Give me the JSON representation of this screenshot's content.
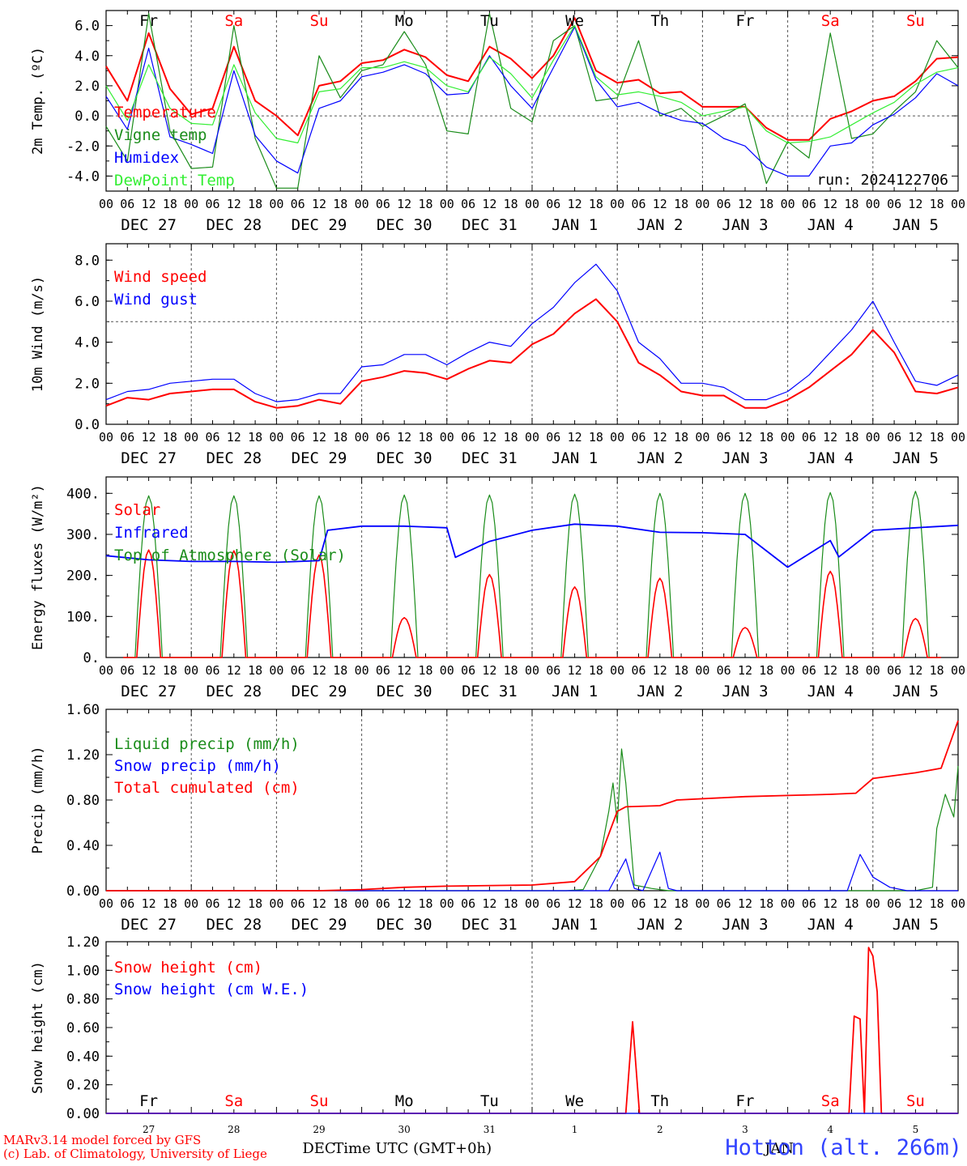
{
  "colors": {
    "red": "#ff0000",
    "green": "#1a8c1a",
    "blue": "#0000ff",
    "lightgreen": "#33ee33",
    "grid": "#555555",
    "axis": "#000000"
  },
  "hour_ticks": [
    "00",
    "06",
    "12",
    "18"
  ],
  "date_labels": [
    "DEC 27",
    "DEC 28",
    "DEC 29",
    "DEC 30",
    "DEC 31",
    "JAN  1",
    "JAN  2",
    "JAN  3",
    "JAN  4",
    "JAN  5"
  ],
  "day_names": [
    {
      "label": "Fr",
      "color": "black"
    },
    {
      "label": "Sa",
      "color": "red"
    },
    {
      "label": "Su",
      "color": "red"
    },
    {
      "label": "Mo",
      "color": "black"
    },
    {
      "label": "Tu",
      "color": "black"
    },
    {
      "label": "We",
      "color": "black"
    },
    {
      "label": "Th",
      "color": "black"
    },
    {
      "label": "Fr",
      "color": "black"
    },
    {
      "label": "Sa",
      "color": "red"
    },
    {
      "label": "Su",
      "color": "red"
    }
  ],
  "bottom_days": [
    "27",
    "28",
    "29",
    "30",
    "31",
    "1",
    "2",
    "3",
    "4",
    "5"
  ],
  "bottom_month_dec": "DEC",
  "bottom_month_jan": "JAN",
  "x_axis_title": "Time UTC (GMT+0h)",
  "credit_line1": "MARv3.14 model forced by GFS",
  "credit_line2": "(c) Lab. of Climatology, University of Liege",
  "station": "Hotton (alt. 266m)",
  "run_label": "run: 2024122706",
  "chart_data": [
    {
      "type": "line",
      "ylabel": "2m Temp. (ºC)",
      "ylim": [
        -5,
        7
      ],
      "yticks": [
        "6.0",
        "4.0",
        "2.0",
        "0.0",
        "-2.0",
        "-4.0"
      ],
      "ytick_values": [
        6,
        4,
        2,
        0,
        -2,
        -4
      ],
      "hline": 0,
      "x_days": [
        0,
        0.25,
        0.5,
        0.75,
        1,
        1.25,
        1.5,
        1.75,
        2,
        2.25,
        2.5,
        2.75,
        3,
        3.25,
        3.5,
        3.75,
        4,
        4.25,
        4.5,
        4.75,
        5,
        5.25,
        5.5,
        5.75,
        6,
        6.25,
        6.5,
        6.75,
        7,
        7.25,
        7.5,
        7.75,
        8,
        8.25,
        8.5,
        8.75,
        9,
        9.25,
        9.5,
        9.75,
        10
      ],
      "series": [
        {
          "name": "Temperature",
          "color": "red",
          "values": [
            3.3,
            1.0,
            5.5,
            1.8,
            0.1,
            0.5,
            4.6,
            1.0,
            0.0,
            -1.3,
            2.0,
            2.3,
            3.5,
            3.7,
            4.4,
            3.9,
            2.7,
            2.3,
            4.6,
            3.8,
            2.5,
            4.0,
            6.5,
            3.0,
            2.2,
            2.4,
            1.5,
            1.6,
            0.6,
            0.6,
            0.6,
            -0.8,
            -1.6,
            -1.6,
            -0.2,
            0.3,
            1.0,
            1.3,
            2.3,
            3.8,
            3.9
          ]
        },
        {
          "name": "Vigne temp",
          "color": "green",
          "values": [
            -0.7,
            -3.0,
            6.8,
            -1.0,
            -3.5,
            -3.4,
            6.0,
            -1.5,
            -4.8,
            -4.8,
            4.0,
            1.2,
            3.0,
            3.4,
            5.6,
            3.4,
            -1.0,
            -1.2,
            6.8,
            0.5,
            -0.4,
            5.0,
            6.0,
            1.0,
            1.2,
            5.0,
            0.0,
            0.5,
            -0.7,
            0.0,
            0.8,
            -4.5,
            -1.7,
            -2.8,
            5.5,
            -1.5,
            -1.2,
            0.3,
            1.6,
            5.0,
            3.2
          ]
        },
        {
          "name": "Humidex",
          "color": "blue",
          "values": [
            1.3,
            -0.9,
            4.5,
            -1.4,
            -1.9,
            -2.5,
            3.0,
            -1.3,
            -3.0,
            -3.8,
            0.5,
            1.0,
            2.6,
            2.9,
            3.4,
            2.8,
            1.4,
            1.5,
            4.0,
            2.0,
            0.5,
            3.2,
            5.9,
            2.4,
            0.6,
            0.9,
            0.2,
            -0.3,
            -0.5,
            -1.5,
            -2.0,
            -3.4,
            -4.0,
            -4.0,
            -2.0,
            -1.8,
            -0.6,
            0.1,
            1.2,
            2.8,
            2.0
          ]
        },
        {
          "name": "DewPoint Temp",
          "color": "lightgreen",
          "values": [
            2.0,
            -0.3,
            3.4,
            0.5,
            -0.5,
            -0.6,
            3.4,
            0.2,
            -1.5,
            -1.8,
            1.6,
            1.8,
            3.2,
            3.2,
            3.6,
            3.2,
            2.0,
            1.6,
            3.9,
            2.8,
            1.2,
            3.7,
            6.0,
            2.6,
            1.4,
            1.6,
            1.3,
            0.9,
            0.0,
            0.3,
            0.6,
            -1.0,
            -1.8,
            -1.7,
            -1.4,
            -0.6,
            0.2,
            0.9,
            2.1,
            2.9,
            3.2
          ]
        }
      ]
    },
    {
      "type": "line",
      "ylabel": "10m Wind (m/s)",
      "ylim": [
        0,
        8.8
      ],
      "yticks": [
        "8.0",
        "6.0",
        "4.0",
        "2.0",
        "0.0"
      ],
      "ytick_values": [
        8,
        6,
        4,
        2,
        0
      ],
      "hline": 5,
      "x_days": [
        0,
        0.25,
        0.5,
        0.75,
        1,
        1.25,
        1.5,
        1.75,
        2,
        2.25,
        2.5,
        2.75,
        3,
        3.25,
        3.5,
        3.75,
        4,
        4.25,
        4.5,
        4.75,
        5,
        5.25,
        5.5,
        5.75,
        6,
        6.25,
        6.5,
        6.75,
        7,
        7.25,
        7.5,
        7.75,
        8,
        8.25,
        8.5,
        8.75,
        9,
        9.25,
        9.5,
        9.75,
        10
      ],
      "series": [
        {
          "name": "Wind speed",
          "color": "red",
          "values": [
            0.9,
            1.3,
            1.2,
            1.5,
            1.6,
            1.7,
            1.7,
            1.1,
            0.8,
            0.9,
            1.2,
            1.0,
            2.1,
            2.3,
            2.6,
            2.5,
            2.2,
            2.7,
            3.1,
            3.0,
            3.9,
            4.4,
            5.4,
            6.1,
            5.0,
            3.0,
            2.4,
            1.6,
            1.4,
            1.4,
            0.8,
            0.8,
            1.2,
            1.8,
            2.6,
            3.4,
            4.6,
            3.5,
            1.6,
            1.5,
            1.8
          ]
        },
        {
          "name": "Wind gust",
          "color": "blue",
          "values": [
            1.2,
            1.6,
            1.7,
            2.0,
            2.1,
            2.2,
            2.2,
            1.5,
            1.1,
            1.2,
            1.5,
            1.5,
            2.8,
            2.9,
            3.4,
            3.4,
            2.9,
            3.5,
            4.0,
            3.8,
            4.9,
            5.7,
            6.9,
            7.8,
            6.5,
            4.0,
            3.2,
            2.0,
            2.0,
            1.8,
            1.2,
            1.2,
            1.6,
            2.4,
            3.5,
            4.6,
            6.0,
            4.0,
            2.1,
            1.9,
            2.4
          ]
        }
      ]
    },
    {
      "type": "line",
      "ylabel": "Energy fluxes (W/m²)",
      "ylim": [
        0,
        440
      ],
      "yticks": [
        "400.",
        "300.",
        "200.",
        "100.",
        "0."
      ],
      "ytick_values": [
        400,
        300,
        200,
        100,
        0
      ],
      "infrared_x_days": [
        0,
        0.5,
        1,
        1.5,
        2,
        2.5,
        2.6,
        3,
        3.5,
        4,
        4.1,
        4.5,
        5,
        5.5,
        6,
        6.5,
        7,
        7.5,
        8,
        8.5,
        8.6,
        9,
        9.5,
        10
      ],
      "infrared_values": [
        248,
        238,
        234,
        234,
        232,
        236,
        310,
        320,
        320,
        316,
        244,
        283,
        310,
        325,
        320,
        305,
        304,
        300,
        220,
        285,
        245,
        310,
        316,
        322
      ],
      "daily_solar_peak": [
        262,
        260,
        250,
        97,
        202,
        172,
        193,
        73,
        210,
        95
      ],
      "daily_toa_peak": [
        394,
        394,
        394,
        396,
        396,
        398,
        400,
        400,
        402,
        405
      ],
      "series": [
        {
          "name": "Solar",
          "color": "red"
        },
        {
          "name": "Infrared",
          "color": "blue"
        },
        {
          "name": "Top of Atmosphere (Solar)",
          "color": "green"
        }
      ]
    },
    {
      "type": "line",
      "ylabel": "Precip (mm/h)",
      "ylim": [
        0,
        1.6
      ],
      "yticks": [
        "1.60",
        "1.20",
        "0.80",
        "0.40",
        "0.00"
      ],
      "ytick_values": [
        1.6,
        1.2,
        0.8,
        0.4,
        0
      ],
      "series": [
        {
          "name": "Liquid precip (mm/h)",
          "color": "green",
          "x_days": [
            0,
            5.4,
            5.6,
            5.8,
            5.9,
            5.95,
            6.0,
            6.05,
            6.1,
            6.2,
            6.4,
            6.6,
            9.5,
            9.7,
            9.75,
            9.85,
            9.95,
            10
          ],
          "values": [
            0,
            0,
            0.01,
            0.3,
            0.7,
            0.95,
            0.6,
            1.25,
            0.95,
            0.05,
            0.02,
            0.0,
            0.0,
            0.03,
            0.55,
            0.85,
            0.65,
            1.1
          ]
        },
        {
          "name": "Snow precip (mm/h)",
          "color": "blue",
          "x_days": [
            0,
            5.9,
            6.1,
            6.2,
            6.3,
            6.5,
            6.6,
            6.7,
            8.7,
            8.85,
            9.0,
            9.2,
            9.4,
            10
          ],
          "values": [
            0,
            0,
            0.28,
            0.02,
            0.0,
            0.34,
            0.02,
            0.0,
            0.0,
            0.32,
            0.12,
            0.03,
            0.0,
            0.0
          ]
        },
        {
          "name": "Total cumulated (cm)",
          "color": "red",
          "x_days": [
            0,
            2.5,
            3.0,
            3.5,
            4.0,
            5.0,
            5.5,
            5.8,
            6.0,
            6.1,
            6.5,
            6.7,
            7.5,
            8.0,
            8.5,
            8.8,
            9.0,
            9.5,
            9.8,
            10
          ],
          "values": [
            0,
            0,
            0.01,
            0.03,
            0.04,
            0.05,
            0.08,
            0.3,
            0.7,
            0.74,
            0.75,
            0.8,
            0.83,
            0.84,
            0.85,
            0.86,
            0.99,
            1.04,
            1.08,
            1.5
          ]
        }
      ]
    },
    {
      "type": "line",
      "ylabel": "Snow height (cm)",
      "ylim": [
        0,
        1.2
      ],
      "yticks": [
        "1.20",
        "1.00",
        "0.80",
        "0.60",
        "0.40",
        "0.20",
        "0.00"
      ],
      "ytick_values": [
        1.2,
        1.0,
        0.8,
        0.6,
        0.4,
        0.2,
        0
      ],
      "series": [
        {
          "name": "Snow height (cm)",
          "color": "red",
          "x_days": [
            0,
            6.1,
            6.18,
            6.26,
            8.72,
            8.78,
            8.85,
            8.9,
            8.95,
            9.0,
            9.05,
            9.1,
            10
          ],
          "values": [
            0,
            0,
            0.64,
            0,
            0,
            0.68,
            0.66,
            0,
            1.16,
            1.1,
            0.85,
            0,
            0
          ]
        },
        {
          "name": "Snow height (cm W.E.)",
          "color": "blue",
          "x_days": [
            0,
            10
          ],
          "values": [
            0,
            0
          ]
        }
      ]
    }
  ]
}
